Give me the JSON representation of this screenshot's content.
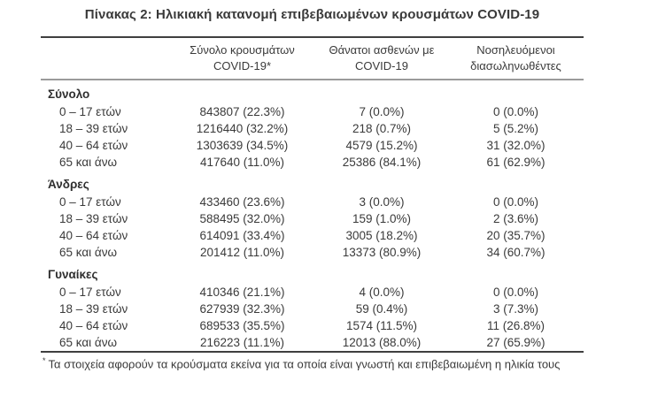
{
  "title": "Πίνακας 2: Ηλικιακή κατανομή επιβεβαιωμένων κρουσμάτων COVID-19",
  "table": {
    "columns": [
      {
        "line1": "Σύνολο κρουσμάτων",
        "line2": "COVID-19*"
      },
      {
        "line1": "Θάνατοι ασθενών με",
        "line2": "COVID-19"
      },
      {
        "line1": "Νοσηλευόμενοι",
        "line2": "διασωληνωθέντες"
      }
    ],
    "sections": [
      {
        "label": "Σύνολο",
        "rows": [
          {
            "age": "0 – 17 ετών",
            "cases": "843807 (22.3%)",
            "deaths": "7 (0.0%)",
            "intubated": "0 (0.0%)"
          },
          {
            "age": "18 – 39 ετών",
            "cases": "1216440 (32.2%)",
            "deaths": "218 (0.7%)",
            "intubated": "5 (5.2%)"
          },
          {
            "age": "40 – 64 ετών",
            "cases": "1303639 (34.5%)",
            "deaths": "4579 (15.2%)",
            "intubated": "31 (32.0%)"
          },
          {
            "age": "65 και άνω",
            "cases": "417640 (11.0%)",
            "deaths": "25386 (84.1%)",
            "intubated": "61 (62.9%)"
          }
        ]
      },
      {
        "label": "Άνδρες",
        "rows": [
          {
            "age": "0 – 17 ετών",
            "cases": "433460 (23.6%)",
            "deaths": "3 (0.0%)",
            "intubated": "0 (0.0%)"
          },
          {
            "age": "18 – 39 ετών",
            "cases": "588495 (32.0%)",
            "deaths": "159 (1.0%)",
            "intubated": "2 (3.6%)"
          },
          {
            "age": "40 – 64 ετών",
            "cases": "614091 (33.4%)",
            "deaths": "3005 (18.2%)",
            "intubated": "20 (35.7%)"
          },
          {
            "age": "65 και άνω",
            "cases": "201412 (11.0%)",
            "deaths": "13373 (80.9%)",
            "intubated": "34 (60.7%)"
          }
        ]
      },
      {
        "label": "Γυναίκες",
        "rows": [
          {
            "age": "0 – 17 ετών",
            "cases": "410346 (21.1%)",
            "deaths": "4 (0.0%)",
            "intubated": "0 (0.0%)"
          },
          {
            "age": "18 – 39 ετών",
            "cases": "627939 (32.3%)",
            "deaths": "59 (0.4%)",
            "intubated": "3 (7.3%)"
          },
          {
            "age": "40 – 64 ετών",
            "cases": "689533 (35.5%)",
            "deaths": "1574 (11.5%)",
            "intubated": "11 (26.8%)"
          },
          {
            "age": "65 και άνω",
            "cases": "216223 (11.1%)",
            "deaths": "12013 (88.0%)",
            "intubated": "27 (65.9%)"
          }
        ]
      }
    ]
  },
  "footnote": {
    "marker": "*",
    "text": "Τα στοιχεία αφορούν τα κρούσματα εκείνα για τα οποία είναι γνωστή και επιβεβαιωμένη η ηλικία τους"
  },
  "colors": {
    "text": "#3a3a3a",
    "rule_dark": "#3f3f3f",
    "rule_gray": "#9b9b9b",
    "background": "#ffffff"
  }
}
